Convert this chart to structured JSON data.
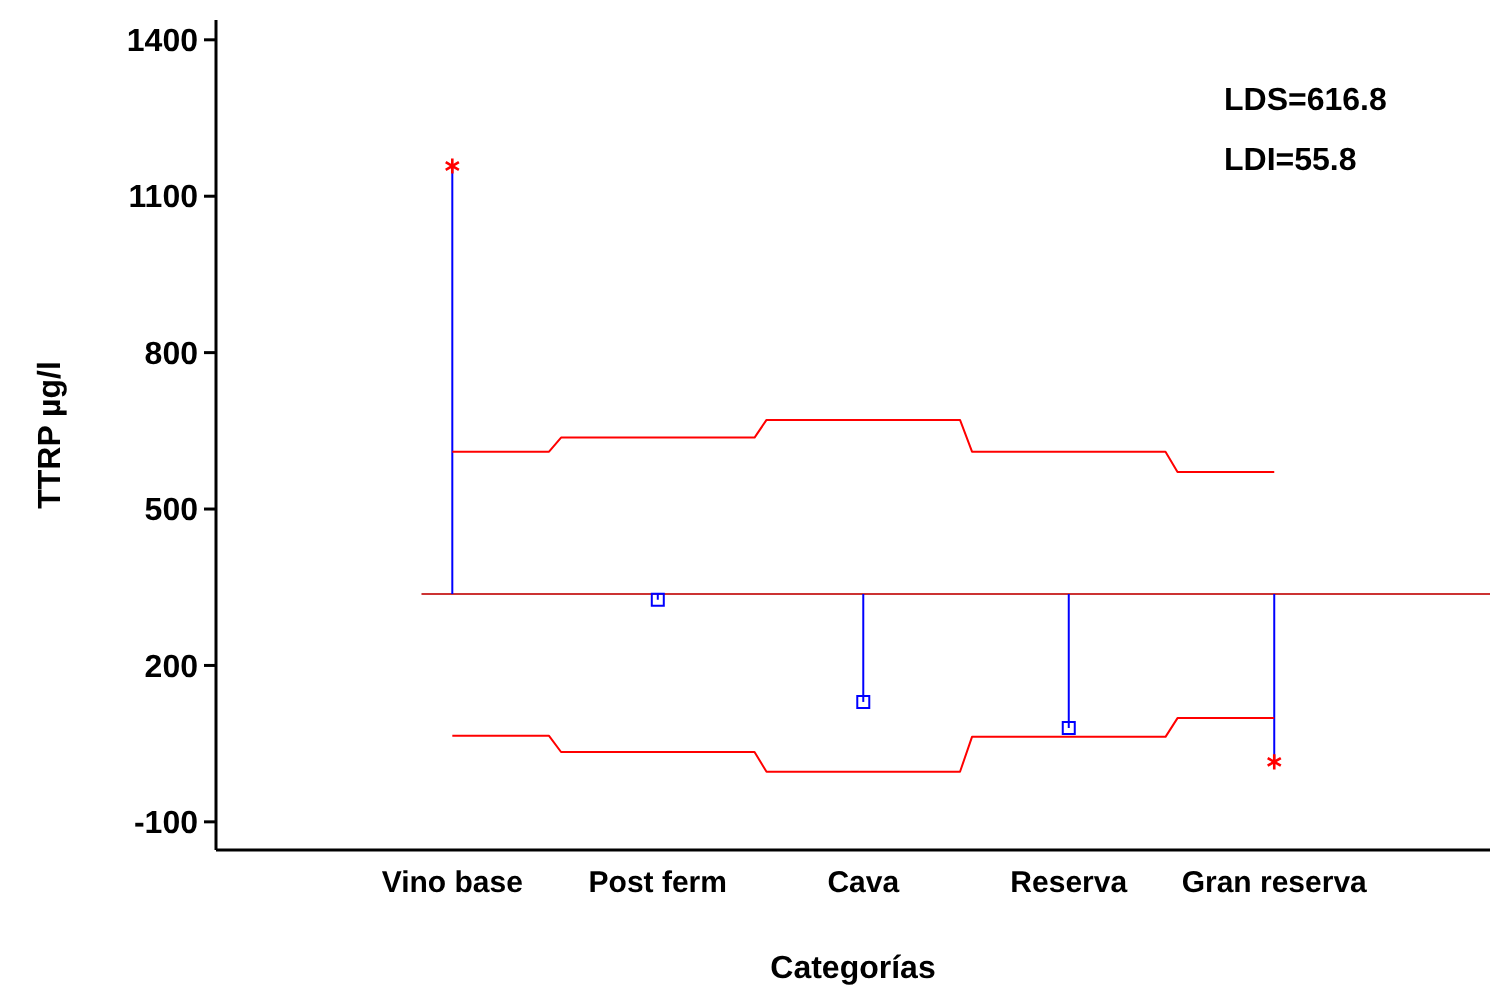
{
  "chart_data": {
    "type": "lollipop",
    "xlabel": "Categorías",
    "ylabel": "TTRP µg/l",
    "categories": [
      "Vino base",
      "Post ferm",
      "Cava",
      "Reserva",
      "Gran reserva"
    ],
    "ylim": [
      -154,
      1438
    ],
    "yticks": [
      -100,
      200,
      500,
      800,
      1100,
      1400
    ],
    "series": [
      {
        "color": "#0000ff",
        "marker": "square",
        "values": [
          null,
          326,
          130,
          80,
          null
        ],
        "errors": [
          null,
          [
            326,
            337
          ],
          [
            130,
            337
          ],
          [
            80,
            337
          ],
          null
        ]
      },
      {
        "color": "#ff0000",
        "marker": "cross",
        "values": [
          1158,
          null,
          null,
          null,
          15
        ],
        "errors": [
          [
            337,
            1158
          ],
          null,
          null,
          null,
          [
            15,
            337
          ]
        ]
      },
      {
        "type": "step",
        "color": "#ff0000",
        "values": [
          610,
          637,
          671,
          610,
          571
        ]
      },
      {
        "type": "step",
        "color": "#ff0000",
        "values": [
          65,
          34,
          -4,
          63,
          99
        ]
      }
    ],
    "ref_lines": [
      {
        "axis": "y",
        "value": 337,
        "color": "#cc3333"
      }
    ],
    "annotations": [
      "LDS=616.8",
      "LDI=55.8"
    ],
    "grid": false
  }
}
